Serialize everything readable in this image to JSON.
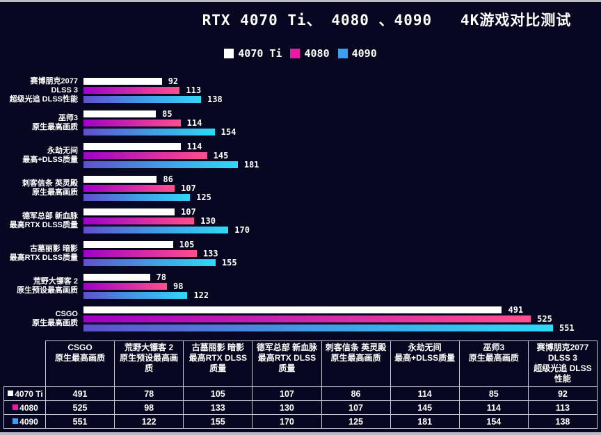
{
  "title": "RTX 4070 Ti、 4080 、4090   4K游戏对比测试",
  "colors": {
    "background": "#070721",
    "text": "#ffffff",
    "edge_strip": "#b9bac6",
    "table_border": "#c9c9d4",
    "bar_4070ti": "#ffffff",
    "bar_4080_gradient": [
      "#a000c8",
      "#ff4f8c"
    ],
    "bar_4090_gradient": [
      "#6050cc",
      "#419be6",
      "#2fd9f7"
    ],
    "legend_4070ti": "#ffffff",
    "legend_4080": "#ee18a4",
    "legend_4090": "#3aa0f0"
  },
  "chart_data": {
    "type": "bar",
    "orientation": "horizontal",
    "title": "RTX 4070 Ti、 4080 、4090   4K游戏对比测试",
    "xlabel": "",
    "ylabel": "",
    "legend_position": "top-center",
    "grid": false,
    "value_axis_range": [
      0,
      565
    ],
    "categories": [
      {
        "lines": [
          "赛博朋克2077",
          "DLSS 3",
          "超级光追 DLSS性能"
        ]
      },
      {
        "lines": [
          "巫师3",
          "原生最高画质"
        ]
      },
      {
        "lines": [
          "永劫无间",
          "最高+DLSS质量"
        ]
      },
      {
        "lines": [
          "刺客信条 英灵殿",
          "原生最高画质"
        ]
      },
      {
        "lines": [
          "德军总部 新血脉",
          "最高RTX DLSS质量"
        ]
      },
      {
        "lines": [
          "古墓丽影 暗影",
          "最高RTX DLSS质量"
        ]
      },
      {
        "lines": [
          "荒野大镖客 2",
          "原生预设最高画质"
        ]
      },
      {
        "lines": [
          "CSGO",
          "原生最高画质"
        ]
      }
    ],
    "series": [
      {
        "name": "4070 Ti",
        "legend_color": "#ffffff",
        "gradient": [
          "#ffffff",
          "#ffffff"
        ],
        "values": [
          92,
          85,
          114,
          86,
          107,
          105,
          78,
          491
        ]
      },
      {
        "name": "4080",
        "legend_color": "#ee18a4",
        "gradient": [
          "#a000c8",
          "#ff4f8c"
        ],
        "values": [
          113,
          114,
          145,
          107,
          130,
          133,
          98,
          525
        ]
      },
      {
        "name": "4090",
        "legend_color": "#3aa0f0",
        "gradient": [
          "#6050cc",
          "#419be6",
          "#2fd9f7"
        ],
        "values": [
          138,
          154,
          181,
          125,
          170,
          155,
          122,
          551
        ]
      }
    ]
  },
  "table": {
    "corner_label": "",
    "columns": [
      "CSGO\n原生最高画质",
      "荒野大镖客 2\n原生预设最高画质",
      "古墓丽影 暗影\n最高RTX DLSS质量",
      "德军总部 新血脉\n最高RTX DLSS质量",
      "刺客信条 英灵殿\n原生最高画质",
      "永劫无间\n最高+DLSS质量",
      "巫师3\n原生最高画质",
      "赛博朋克2077\nDLSS 3\n超级光追 DLSS 性能"
    ],
    "rows": [
      {
        "label": "4070 Ti",
        "swatch": "#ffffff",
        "values": [
          491,
          78,
          105,
          107,
          86,
          114,
          85,
          92
        ]
      },
      {
        "label": "4080",
        "swatch": "#ee18a4",
        "values": [
          525,
          98,
          133,
          130,
          107,
          145,
          114,
          113
        ]
      },
      {
        "label": "4090",
        "swatch": "#3aa0f0",
        "values": [
          551,
          122,
          155,
          170,
          125,
          181,
          154,
          138
        ]
      }
    ]
  }
}
